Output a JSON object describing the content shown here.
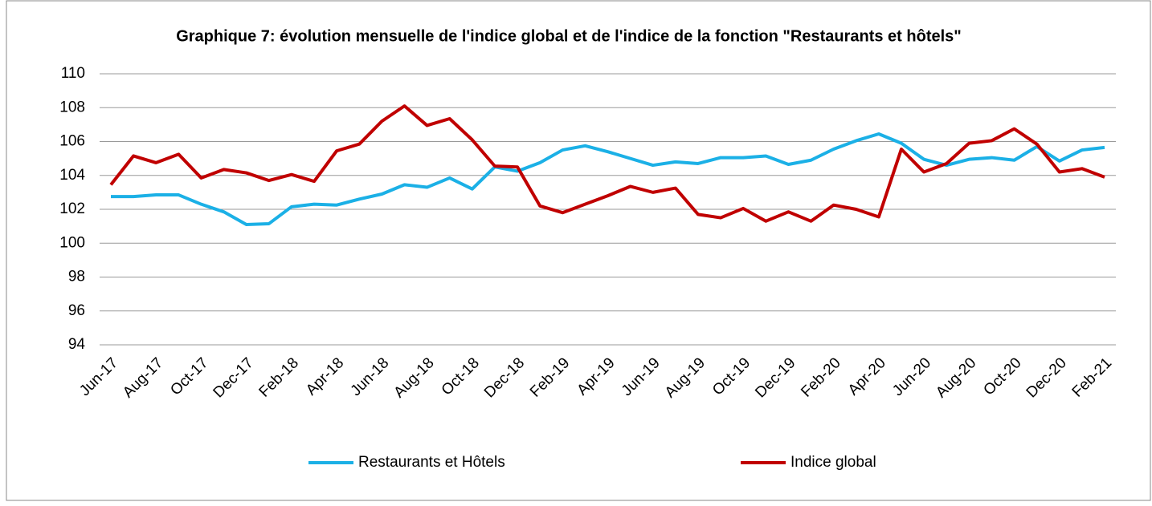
{
  "chart_data": {
    "type": "line",
    "title": "Graphique 7: évolution mensuelle de l'indice global et de l'indice de la fonction \"Restaurants et hôtels\"",
    "categories": [
      "Jun-17",
      null,
      "Aug-17",
      null,
      "Oct-17",
      null,
      "Dec-17",
      null,
      "Feb-18",
      null,
      "Apr-18",
      null,
      "Jun-18",
      null,
      "Aug-18",
      null,
      "Oct-18",
      null,
      "Dec-18",
      null,
      "Feb-19",
      null,
      "Apr-19",
      null,
      "Jun-19",
      null,
      "Aug-19",
      null,
      "Oct-19",
      null,
      "Dec-19",
      null,
      "Feb-20",
      null,
      "Apr-20",
      null,
      "Jun-20",
      null,
      "Aug-20",
      null,
      "Oct-20",
      null,
      "Dec-20",
      null,
      "Feb-21"
    ],
    "series": [
      {
        "name": "Restaurants et Hôtels",
        "color": "#1bb0e6",
        "values": [
          102.75,
          102.75,
          102.85,
          102.85,
          102.3,
          101.85,
          101.1,
          101.15,
          102.15,
          102.3,
          102.25,
          102.6,
          102.9,
          103.45,
          103.3,
          103.85,
          103.2,
          104.5,
          104.25,
          104.75,
          105.5,
          105.75,
          105.4,
          105.0,
          104.6,
          104.8,
          104.7,
          105.05,
          105.05,
          105.15,
          104.65,
          104.9,
          105.55,
          106.05,
          106.45,
          105.9,
          104.95,
          104.6,
          104.95,
          105.05,
          104.9,
          105.7,
          104.85,
          105.5,
          105.65
        ]
      },
      {
        "name": "Indice global",
        "color": "#c00000",
        "values": [
          103.45,
          105.15,
          104.75,
          105.25,
          103.85,
          104.35,
          104.15,
          103.7,
          104.05,
          103.65,
          105.45,
          105.85,
          107.2,
          108.1,
          106.95,
          107.35,
          106.1,
          104.55,
          104.5,
          102.2,
          101.8,
          102.3,
          102.8,
          103.35,
          103.0,
          103.25,
          101.7,
          101.5,
          102.05,
          101.3,
          101.85,
          101.3,
          102.25,
          102.0,
          101.55,
          105.55,
          104.2,
          104.7,
          105.9,
          106.05,
          106.75,
          105.85,
          104.2,
          104.4,
          103.9
        ]
      }
    ],
    "ylim": [
      94,
      110
    ],
    "yticks": [
      94,
      96,
      98,
      100,
      102,
      104,
      106,
      108,
      110
    ],
    "grid": true,
    "legend": "bottom"
  }
}
